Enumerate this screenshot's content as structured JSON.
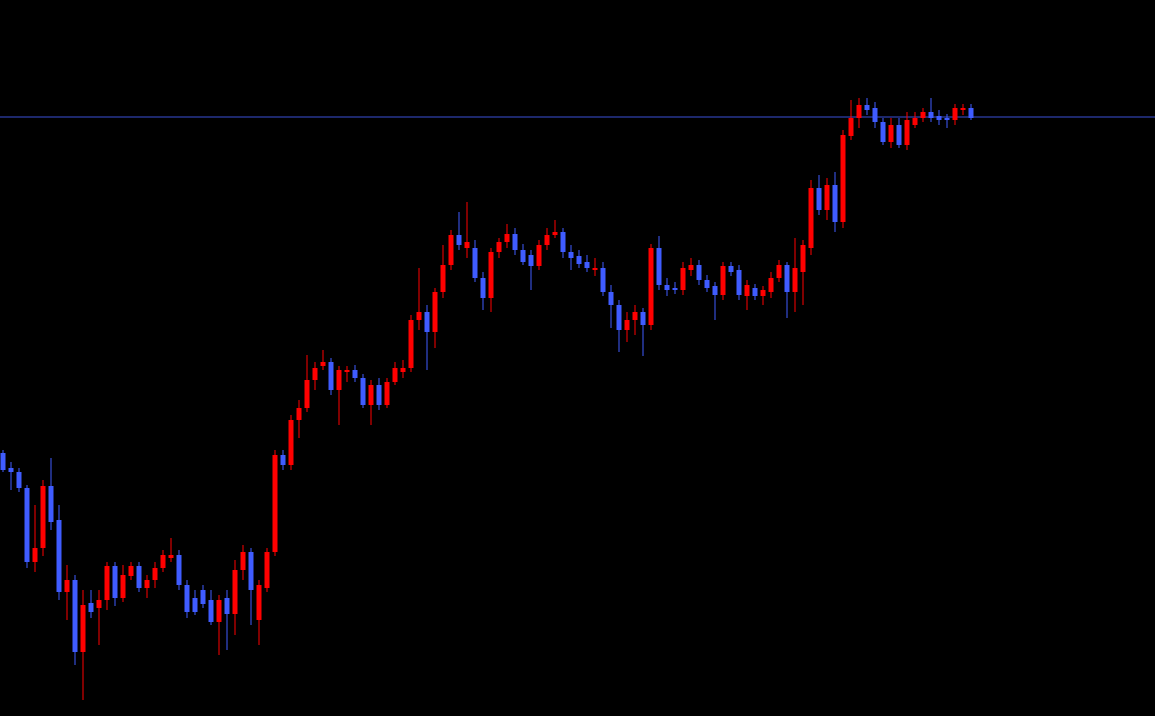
{
  "chart_data": {
    "type": "candlestick",
    "background": "#000000",
    "up_color": "#ff0000",
    "down_color": "#3f5cff",
    "ylim": [
      0,
      716
    ],
    "reference_line": {
      "value": 599,
      "color": "#3a4fd6"
    },
    "open": [
      263,
      248,
      244,
      228,
      154,
      168,
      230,
      196,
      124,
      136,
      64,
      113,
      108,
      116,
      150,
      118,
      140,
      150,
      128,
      136,
      148,
      158,
      161,
      131,
      118,
      126,
      116,
      94,
      118,
      102,
      146,
      164,
      96,
      128,
      164,
      261,
      251,
      296,
      308,
      336,
      350,
      354,
      326,
      344,
      346,
      338,
      311,
      331,
      311,
      334,
      344,
      348,
      396,
      404,
      384,
      424,
      451,
      481,
      468,
      468,
      438,
      418,
      464,
      474,
      482,
      466,
      461,
      450,
      471,
      481,
      484,
      464,
      460,
      454,
      446,
      448,
      424,
      411,
      386,
      396,
      404,
      391,
      468,
      431,
      428,
      426,
      446,
      451,
      436,
      430,
      421,
      450,
      446,
      420,
      428,
      420,
      424,
      438,
      451,
      424,
      444,
      468,
      528,
      506,
      531,
      494,
      580,
      598,
      611,
      608,
      594,
      574,
      591,
      571,
      591,
      598,
      604,
      600,
      598,
      596,
      606,
      608
    ],
    "high": [
      266,
      254,
      248,
      231,
      211,
      236,
      258,
      211,
      151,
      141,
      126,
      126,
      126,
      154,
      154,
      151,
      154,
      154,
      141,
      154,
      166,
      178,
      166,
      136,
      126,
      131,
      126,
      121,
      126,
      156,
      171,
      168,
      136,
      168,
      266,
      266,
      301,
      316,
      361,
      354,
      366,
      358,
      350,
      350,
      351,
      342,
      336,
      338,
      338,
      354,
      356,
      401,
      448,
      411,
      428,
      471,
      486,
      504,
      514,
      476,
      444,
      468,
      478,
      492,
      488,
      472,
      466,
      476,
      488,
      496,
      488,
      471,
      466,
      461,
      458,
      454,
      431,
      416,
      404,
      411,
      408,
      472,
      480,
      438,
      434,
      454,
      458,
      456,
      441,
      434,
      454,
      454,
      451,
      436,
      432,
      430,
      444,
      456,
      454,
      478,
      476,
      536,
      541,
      538,
      544,
      586,
      616,
      618,
      618,
      614,
      598,
      598,
      598,
      604,
      604,
      608,
      618,
      606,
      602,
      612,
      612,
      612
    ],
    "low": [
      244,
      226,
      224,
      148,
      144,
      160,
      186,
      116,
      96,
      51,
      16,
      98,
      71,
      106,
      110,
      114,
      136,
      124,
      118,
      128,
      144,
      154,
      126,
      98,
      101,
      108,
      91,
      61,
      66,
      81,
      136,
      91,
      71,
      124,
      160,
      246,
      246,
      278,
      304,
      326,
      346,
      321,
      291,
      334,
      334,
      308,
      291,
      306,
      308,
      331,
      338,
      344,
      386,
      346,
      368,
      418,
      446,
      466,
      458,
      434,
      406,
      404,
      458,
      468,
      461,
      451,
      426,
      446,
      466,
      478,
      458,
      446,
      448,
      444,
      440,
      420,
      388,
      364,
      374,
      381,
      360,
      386,
      426,
      420,
      422,
      421,
      440,
      431,
      424,
      396,
      416,
      440,
      416,
      406,
      416,
      411,
      418,
      434,
      398,
      404,
      411,
      461,
      501,
      496,
      484,
      488,
      576,
      588,
      601,
      588,
      571,
      568,
      568,
      566,
      588,
      594,
      594,
      591,
      588,
      591,
      601,
      596
    ],
    "close": [
      246,
      244,
      228,
      154,
      168,
      230,
      194,
      124,
      136,
      64,
      111,
      104,
      116,
      150,
      118,
      141,
      150,
      128,
      136,
      148,
      161,
      161,
      131,
      104,
      104,
      112,
      94,
      116,
      102,
      146,
      164,
      126,
      131,
      164,
      261,
      251,
      296,
      308,
      336,
      348,
      354,
      326,
      346,
      346,
      338,
      311,
      331,
      311,
      334,
      348,
      348,
      396,
      404,
      384,
      424,
      451,
      481,
      471,
      474,
      438,
      418,
      464,
      474,
      482,
      466,
      454,
      450,
      471,
      481,
      484,
      464,
      458,
      452,
      448,
      448,
      424,
      411,
      386,
      396,
      404,
      391,
      468,
      431,
      426,
      426,
      448,
      451,
      436,
      428,
      421,
      450,
      444,
      421,
      431,
      420,
      426,
      438,
      451,
      424,
      448,
      471,
      528,
      506,
      531,
      494,
      581,
      598,
      611,
      606,
      594,
      574,
      591,
      571,
      596,
      598,
      604,
      598,
      596,
      596,
      608,
      608,
      598
    ]
  }
}
